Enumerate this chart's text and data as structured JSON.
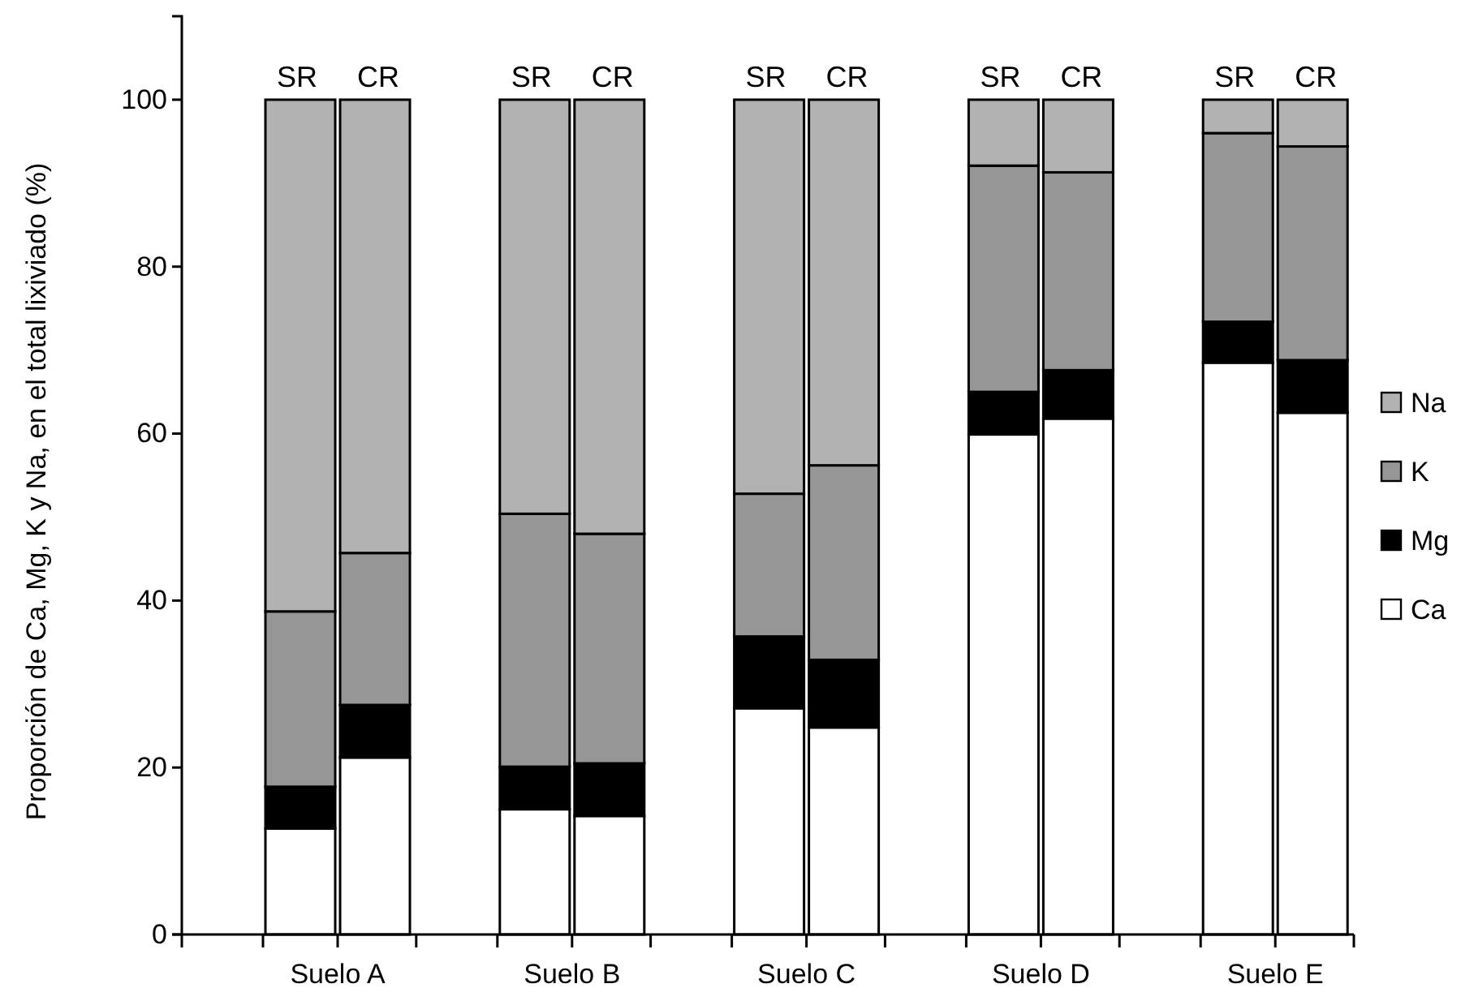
{
  "chart_data": {
    "type": "bar",
    "stacked": true,
    "ylabel": "Proporción de Ca, Mg, K y Na, en el total lixiviado (%)",
    "categories": [
      "SR",
      "CR",
      "SR",
      "CR",
      "SR",
      "CR",
      "SR",
      "CR",
      "SR",
      "CR"
    ],
    "annotations": [
      "Suelo A",
      "Suelo B",
      "Suelo C",
      "Suelo D",
      "Suelo E"
    ],
    "series": [
      {
        "name": "Ca",
        "color": "#ffffff",
        "values": [
          12.7,
          21.2,
          15.0,
          14.2,
          27.1,
          24.8,
          59.9,
          61.8,
          68.5,
          62.5
        ]
      },
      {
        "name": "Mg",
        "color": "#000000",
        "values": [
          5.0,
          6.3,
          5.1,
          6.3,
          8.6,
          8.1,
          5.1,
          5.8,
          4.9,
          6.3
        ]
      },
      {
        "name": "K",
        "color": "#969696",
        "values": [
          21.0,
          18.2,
          30.3,
          27.5,
          17.1,
          23.3,
          27.1,
          23.7,
          22.6,
          25.6
        ]
      },
      {
        "name": "Na",
        "color": "#b2b2b2",
        "values": [
          61.3,
          54.3,
          49.6,
          52.0,
          47.2,
          43.8,
          7.9,
          8.7,
          4.0,
          5.6
        ]
      }
    ],
    "ylim": [
      0,
      110
    ],
    "yticks": [
      0,
      20,
      40,
      60,
      80,
      100
    ],
    "grid": false,
    "legend": "right"
  }
}
